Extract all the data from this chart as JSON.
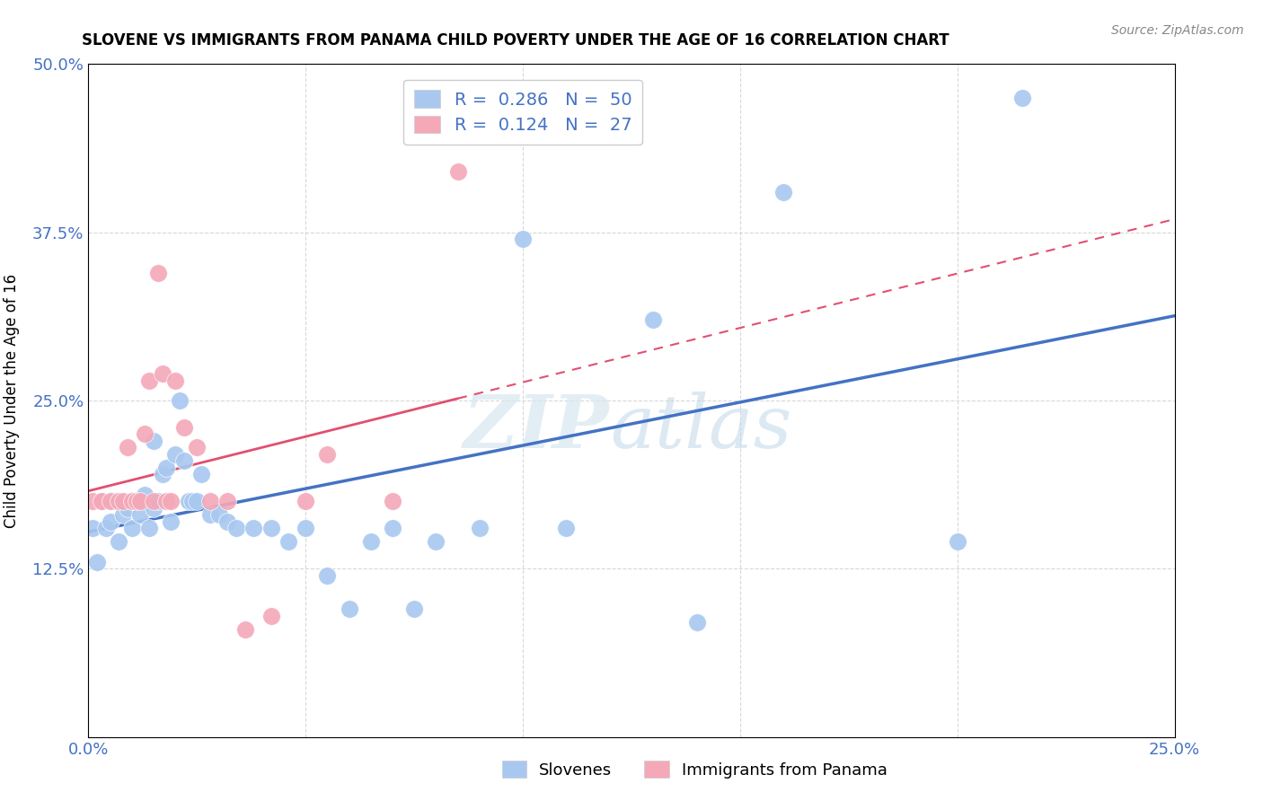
{
  "title": "SLOVENE VS IMMIGRANTS FROM PANAMA CHILD POVERTY UNDER THE AGE OF 16 CORRELATION CHART",
  "source": "Source: ZipAtlas.com",
  "ylabel": "Child Poverty Under the Age of 16",
  "xlim": [
    0,
    0.25
  ],
  "ylim": [
    0,
    0.5
  ],
  "xticks": [
    0.0,
    0.05,
    0.1,
    0.15,
    0.2,
    0.25
  ],
  "yticks": [
    0.0,
    0.125,
    0.25,
    0.375,
    0.5
  ],
  "slovene_R": 0.286,
  "slovene_N": 50,
  "panama_R": 0.124,
  "panama_N": 27,
  "legend_labels": [
    "Slovenes",
    "Immigrants from Panama"
  ],
  "slovene_color": "#a8c8f0",
  "panama_color": "#f4a8b8",
  "slovene_line_color": "#4472c4",
  "panama_line_color": "#e05070",
  "tick_color": "#4472c4",
  "background_color": "#ffffff",
  "grid_color": "#d8d8d8",
  "watermark_zip": "ZIP",
  "watermark_atlas": "atlas",
  "slovene_x": [
    0.001,
    0.002,
    0.003,
    0.004,
    0.005,
    0.006,
    0.007,
    0.008,
    0.009,
    0.01,
    0.01,
    0.011,
    0.012,
    0.013,
    0.014,
    0.015,
    0.015,
    0.016,
    0.017,
    0.018,
    0.019,
    0.02,
    0.021,
    0.022,
    0.023,
    0.024,
    0.025,
    0.026,
    0.028,
    0.03,
    0.032,
    0.034,
    0.038,
    0.042,
    0.046,
    0.05,
    0.055,
    0.06,
    0.065,
    0.07,
    0.075,
    0.08,
    0.09,
    0.1,
    0.11,
    0.13,
    0.14,
    0.16,
    0.2,
    0.215
  ],
  "slovene_y": [
    0.155,
    0.13,
    0.175,
    0.155,
    0.16,
    0.175,
    0.145,
    0.165,
    0.17,
    0.175,
    0.155,
    0.175,
    0.165,
    0.18,
    0.155,
    0.17,
    0.22,
    0.175,
    0.195,
    0.2,
    0.16,
    0.21,
    0.25,
    0.205,
    0.175,
    0.175,
    0.175,
    0.195,
    0.165,
    0.165,
    0.16,
    0.155,
    0.155,
    0.155,
    0.145,
    0.155,
    0.12,
    0.095,
    0.145,
    0.155,
    0.095,
    0.145,
    0.155,
    0.37,
    0.155,
    0.31,
    0.085,
    0.405,
    0.145,
    0.475
  ],
  "panama_x": [
    0.001,
    0.003,
    0.005,
    0.007,
    0.008,
    0.009,
    0.01,
    0.011,
    0.012,
    0.013,
    0.014,
    0.015,
    0.016,
    0.017,
    0.018,
    0.019,
    0.02,
    0.022,
    0.025,
    0.028,
    0.032,
    0.036,
    0.042,
    0.05,
    0.055,
    0.07,
    0.085
  ],
  "panama_y": [
    0.175,
    0.175,
    0.175,
    0.175,
    0.175,
    0.215,
    0.175,
    0.175,
    0.175,
    0.225,
    0.265,
    0.175,
    0.345,
    0.27,
    0.175,
    0.175,
    0.265,
    0.23,
    0.215,
    0.175,
    0.175,
    0.08,
    0.09,
    0.175,
    0.21,
    0.175,
    0.42
  ]
}
